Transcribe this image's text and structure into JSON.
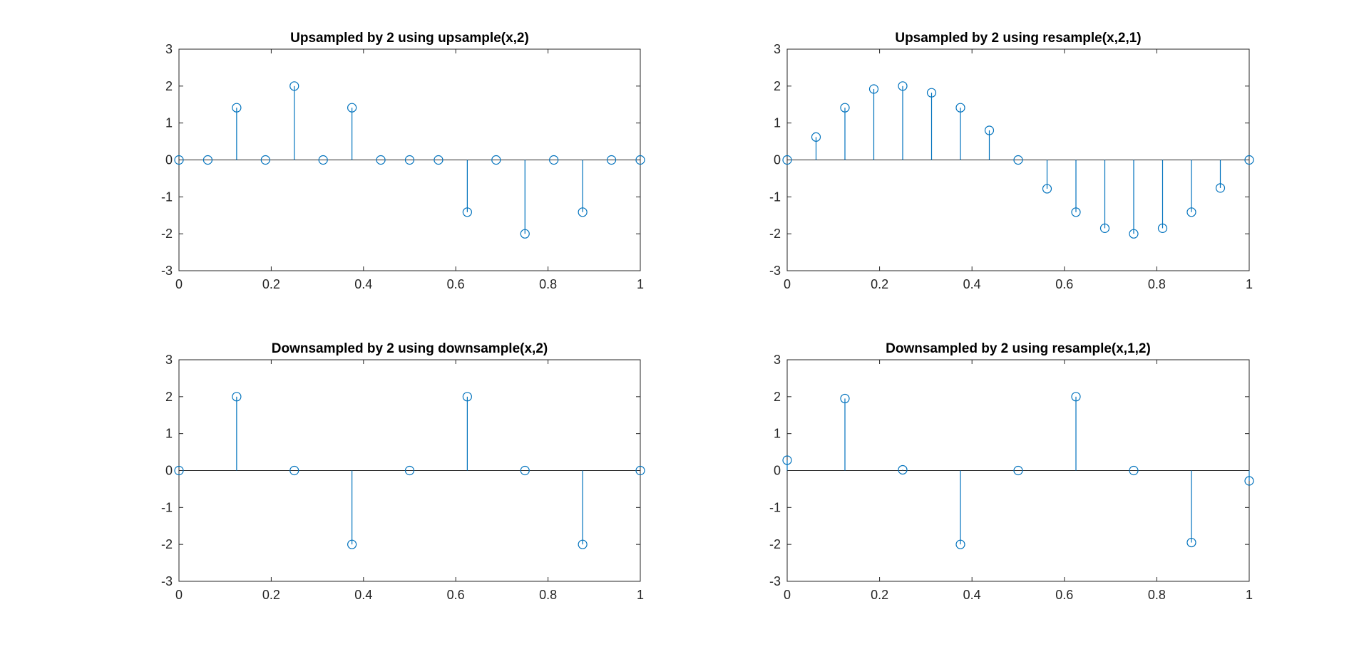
{
  "colors": {
    "series": "#0072BD",
    "axes": "#262626",
    "background": "#ffffff"
  },
  "chart_data": [
    {
      "type": "stem",
      "title": "Upsampled by 2 using upsample(x,2)",
      "xlabel": "",
      "ylabel": "",
      "xlim": [
        0,
        1
      ],
      "ylim": [
        -3,
        3
      ],
      "xticks": [
        0,
        0.2,
        0.4,
        0.6,
        0.8,
        1
      ],
      "xtick_labels": [
        "0",
        "0.2",
        "0.4",
        "0.6",
        "0.8",
        "1"
      ],
      "yticks": [
        -3,
        -2,
        -1,
        0,
        1,
        2,
        3
      ],
      "ytick_labels": [
        "-3",
        "-2",
        "-1",
        "0",
        "1",
        "2",
        "3"
      ],
      "grid": false,
      "x": [
        0,
        0.0625,
        0.125,
        0.1875,
        0.25,
        0.3125,
        0.375,
        0.4375,
        0.5,
        0.5625,
        0.625,
        0.6875,
        0.75,
        0.8125,
        0.875,
        0.9375,
        1
      ],
      "y": [
        0,
        0,
        1.414,
        0,
        2,
        0,
        1.414,
        0,
        0,
        0,
        -1.414,
        0,
        -2,
        0,
        -1.414,
        0,
        0
      ]
    },
    {
      "type": "stem",
      "title": "Upsampled by 2 using resample(x,2,1)",
      "xlabel": "",
      "ylabel": "",
      "xlim": [
        0,
        1
      ],
      "ylim": [
        -3,
        3
      ],
      "xticks": [
        0,
        0.2,
        0.4,
        0.6,
        0.8,
        1
      ],
      "xtick_labels": [
        "0",
        "0.2",
        "0.4",
        "0.6",
        "0.8",
        "1"
      ],
      "yticks": [
        -3,
        -2,
        -1,
        0,
        1,
        2,
        3
      ],
      "ytick_labels": [
        "-3",
        "-2",
        "-1",
        "0",
        "1",
        "2",
        "3"
      ],
      "grid": false,
      "x": [
        0,
        0.0625,
        0.125,
        0.1875,
        0.25,
        0.3125,
        0.375,
        0.4375,
        0.5,
        0.5625,
        0.625,
        0.6875,
        0.75,
        0.8125,
        0.875,
        0.9375,
        1
      ],
      "y": [
        0,
        0.62,
        1.414,
        1.92,
        2,
        1.82,
        1.414,
        0.8,
        0,
        -0.78,
        -1.414,
        -1.85,
        -2,
        -1.85,
        -1.414,
        -0.76,
        0
      ]
    },
    {
      "type": "stem",
      "title": "Downsampled by 2 using downsample(x,2)",
      "xlabel": "",
      "ylabel": "",
      "xlim": [
        0,
        1
      ],
      "ylim": [
        -3,
        3
      ],
      "xticks": [
        0,
        0.2,
        0.4,
        0.6,
        0.8,
        1
      ],
      "xtick_labels": [
        "0",
        "0.2",
        "0.4",
        "0.6",
        "0.8",
        "1"
      ],
      "yticks": [
        -3,
        -2,
        -1,
        0,
        1,
        2,
        3
      ],
      "ytick_labels": [
        "-3",
        "-2",
        "-1",
        "0",
        "1",
        "2",
        "3"
      ],
      "grid": false,
      "x": [
        0,
        0.125,
        0.25,
        0.375,
        0.5,
        0.625,
        0.75,
        0.875,
        1
      ],
      "y": [
        0,
        2,
        0,
        -2,
        0,
        2,
        0,
        -2,
        0
      ]
    },
    {
      "type": "stem",
      "title": "Downsampled by 2 using resample(x,1,2)",
      "xlabel": "",
      "ylabel": "",
      "xlim": [
        0,
        1
      ],
      "ylim": [
        -3,
        3
      ],
      "xticks": [
        0,
        0.2,
        0.4,
        0.6,
        0.8,
        1
      ],
      "xtick_labels": [
        "0",
        "0.2",
        "0.4",
        "0.6",
        "0.8",
        "1"
      ],
      "yticks": [
        -3,
        -2,
        -1,
        0,
        1,
        2,
        3
      ],
      "ytick_labels": [
        "-3",
        "-2",
        "-1",
        "0",
        "1",
        "2",
        "3"
      ],
      "grid": false,
      "x": [
        0,
        0.125,
        0.25,
        0.375,
        0.5,
        0.625,
        0.75,
        0.875,
        1
      ],
      "y": [
        0.28,
        1.95,
        0.02,
        -2,
        0,
        2,
        0,
        -1.95,
        -0.28
      ]
    }
  ]
}
